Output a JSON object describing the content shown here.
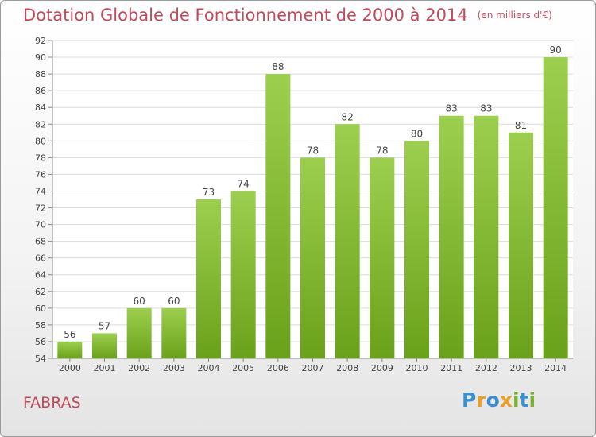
{
  "header": {
    "title": "Dotation Globale de Fonctionnement de 2000 à 2014",
    "unit": "(en milliers d'€)"
  },
  "footer": {
    "commune": "FABRAS",
    "logo_letters": [
      {
        "ch": "P",
        "color": "#3a8fd0"
      },
      {
        "ch": "r",
        "color": "#e8a028"
      },
      {
        "ch": "o",
        "color": "#3a8fd0"
      },
      {
        "ch": "x",
        "color": "#e8a028"
      },
      {
        "ch": "i",
        "color": "#7ab32e"
      },
      {
        "ch": "t",
        "color": "#3a8fd0"
      },
      {
        "ch": "i",
        "color": "#7ab32e"
      }
    ]
  },
  "chart_data": {
    "type": "bar",
    "title": "Dotation Globale de Fonctionnement de 2000 à 2014",
    "subtitle": "(en milliers d'€)",
    "categories": [
      "2000",
      "2001",
      "2002",
      "2003",
      "2004",
      "2005",
      "2006",
      "2007",
      "2008",
      "2009",
      "2010",
      "2011",
      "2012",
      "2013",
      "2014"
    ],
    "values": [
      56,
      57,
      60,
      60,
      73,
      74,
      88,
      78,
      82,
      78,
      80,
      83,
      83,
      81,
      90
    ],
    "ylim": [
      54,
      92
    ],
    "yticks": [
      54,
      56,
      58,
      60,
      62,
      64,
      66,
      68,
      70,
      72,
      74,
      76,
      78,
      80,
      82,
      84,
      86,
      88,
      90,
      92
    ],
    "grid": true,
    "bar_color_top": "#9ccf4e",
    "bar_color_bottom": "#6aa11a"
  }
}
